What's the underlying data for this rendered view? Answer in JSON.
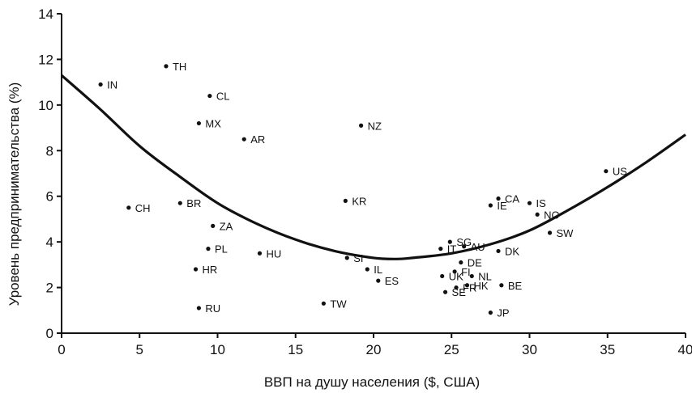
{
  "chart_data": {
    "type": "scatter",
    "title": "",
    "xlabel": "ВВП на душу населения ($, США)",
    "ylabel": "Уровень предпринимательства (%)",
    "xlim": [
      0,
      40
    ],
    "ylim": [
      0,
      14
    ],
    "x_ticks": [
      "0",
      "5",
      "10",
      "15",
      "20",
      "25",
      "30",
      "35",
      "40"
    ],
    "y_ticks": [
      "0",
      "2",
      "4",
      "6",
      "8",
      "10",
      "12",
      "14"
    ],
    "grid": false,
    "legend": "none",
    "colors": {
      "points": "#111111",
      "curve": "#111111",
      "axis": "#111111"
    },
    "points": [
      {
        "label": "IN",
        "x": 2.5,
        "y": 10.9
      },
      {
        "label": "TH",
        "x": 6.7,
        "y": 11.7
      },
      {
        "label": "CL",
        "x": 9.5,
        "y": 10.4
      },
      {
        "label": "MX",
        "x": 8.8,
        "y": 9.2
      },
      {
        "label": "AR",
        "x": 11.7,
        "y": 8.5
      },
      {
        "label": "NZ",
        "x": 19.2,
        "y": 9.1
      },
      {
        "label": "CH",
        "x": 4.3,
        "y": 5.5
      },
      {
        "label": "BR",
        "x": 7.6,
        "y": 5.7
      },
      {
        "label": "ZA",
        "x": 9.7,
        "y": 4.7
      },
      {
        "label": "PL",
        "x": 9.4,
        "y": 3.7
      },
      {
        "label": "HU",
        "x": 12.7,
        "y": 3.5
      },
      {
        "label": "HR",
        "x": 8.6,
        "y": 2.8
      },
      {
        "label": "RU",
        "x": 8.8,
        "y": 1.1
      },
      {
        "label": "KR",
        "x": 18.2,
        "y": 5.8
      },
      {
        "label": "SI",
        "x": 18.3,
        "y": 3.3
      },
      {
        "label": "IL",
        "x": 19.6,
        "y": 2.8
      },
      {
        "label": "ES",
        "x": 20.3,
        "y": 2.3
      },
      {
        "label": "TW",
        "x": 16.8,
        "y": 1.3
      },
      {
        "label": "US",
        "x": 34.9,
        "y": 7.1
      },
      {
        "label": "IS",
        "x": 30.0,
        "y": 5.7
      },
      {
        "label": "CA",
        "x": 28.0,
        "y": 5.9
      },
      {
        "label": "IE",
        "x": 27.5,
        "y": 5.6
      },
      {
        "label": "NO",
        "x": 30.5,
        "y": 5.2
      },
      {
        "label": "SW",
        "x": 31.3,
        "y": 4.4
      },
      {
        "label": "SG",
        "x": 24.9,
        "y": 4.0
      },
      {
        "label": "AU",
        "x": 25.8,
        "y": 3.8
      },
      {
        "label": "IT",
        "x": 24.3,
        "y": 3.7
      },
      {
        "label": "DK",
        "x": 28.0,
        "y": 3.6
      },
      {
        "label": "DE",
        "x": 25.6,
        "y": 3.1
      },
      {
        "label": "FI",
        "x": 25.2,
        "y": 2.7
      },
      {
        "label": "NL",
        "x": 26.3,
        "y": 2.5
      },
      {
        "label": "UK",
        "x": 24.4,
        "y": 2.5
      },
      {
        "label": "SE",
        "x": 24.6,
        "y": 1.8
      },
      {
        "label": "FR",
        "x": 25.3,
        "y": 2.0
      },
      {
        "label": "HK",
        "x": 26.0,
        "y": 2.1
      },
      {
        "label": "BE",
        "x": 28.2,
        "y": 2.1
      },
      {
        "label": "JP",
        "x": 27.5,
        "y": 0.9
      }
    ],
    "trend_curve": {
      "type": "quadratic",
      "x": [
        0,
        2.5,
        5,
        7.5,
        10,
        12.5,
        15,
        17.5,
        20,
        21.5,
        22.5,
        25,
        27.5,
        30,
        32.5,
        35,
        37.5,
        40
      ],
      "y": [
        11.3,
        9.8,
        8.2,
        6.9,
        5.7,
        4.8,
        4.1,
        3.6,
        3.3,
        3.25,
        3.3,
        3.5,
        3.9,
        4.5,
        5.4,
        6.4,
        7.5,
        8.7
      ]
    }
  }
}
